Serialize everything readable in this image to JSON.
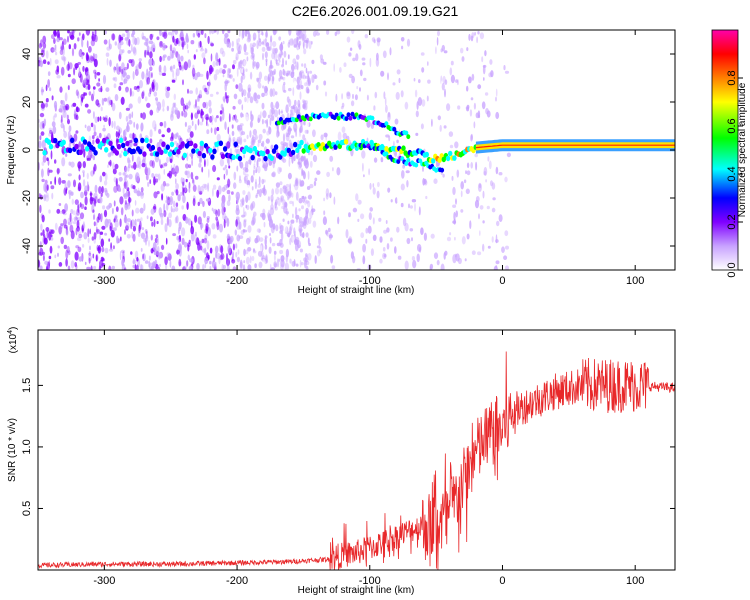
{
  "title": "C2E6.2026.001.09.19.G21",
  "chart_data": [
    {
      "type": "heatmap",
      "title": "C2E6.2026.001.09.19.G21",
      "xlabel": "Height of straight line (km)",
      "ylabel": "Frequency (Hz)",
      "xlim": [
        -350,
        130
      ],
      "ylim": [
        -50,
        50
      ],
      "x_ticks": [
        -300,
        -200,
        -100,
        0,
        100
      ],
      "y_ticks": [
        -40,
        -20,
        0,
        20,
        40
      ],
      "colorbar": {
        "label": "Normalized spectral amplitude",
        "range": [
          0.0,
          1.0
        ],
        "ticks": [
          0.0,
          0.2,
          0.4,
          0.6,
          0.8
        ],
        "tick_labels": [
          "0.0",
          "0.2",
          "0.4",
          "0.6",
          "0.8"
        ],
        "colors": [
          "#ffffff",
          "#c8a2ff",
          "#8000ff",
          "#0000ff",
          "#00ffff",
          "#00ff00",
          "#ffff00",
          "#ff8000",
          "#ff0000",
          "#ff00aa"
        ]
      },
      "main_track": [
        {
          "x": -340,
          "y": 1.5
        },
        {
          "x": -300,
          "y": 1.5
        },
        {
          "x": -260,
          "y": 1
        },
        {
          "x": -220,
          "y": 0
        },
        {
          "x": -180,
          "y": -1
        },
        {
          "x": -150,
          "y": 1
        },
        {
          "x": -120,
          "y": 2
        },
        {
          "x": -100,
          "y": 2
        },
        {
          "x": -85,
          "y": 1
        },
        {
          "x": -70,
          "y": -1
        },
        {
          "x": -60,
          "y": -2
        },
        {
          "x": -50,
          "y": -4
        },
        {
          "x": -40,
          "y": -3
        },
        {
          "x": -30,
          "y": -1
        },
        {
          "x": -20,
          "y": 1
        },
        {
          "x": -10,
          "y": 1.5
        },
        {
          "x": 0,
          "y": 2
        },
        {
          "x": 50,
          "y": 2
        },
        {
          "x": 90,
          "y": 2
        },
        {
          "x": 130,
          "y": 2
        }
      ],
      "upper_track": [
        {
          "x": -170,
          "y": 12
        },
        {
          "x": -140,
          "y": 14
        },
        {
          "x": -110,
          "y": 14
        },
        {
          "x": -95,
          "y": 12
        },
        {
          "x": -80,
          "y": 8
        },
        {
          "x": -70,
          "y": 6
        }
      ],
      "lower_track": [
        {
          "x": -110,
          "y": 3
        },
        {
          "x": -95,
          "y": 1
        },
        {
          "x": -85,
          "y": -3
        },
        {
          "x": -70,
          "y": -5
        },
        {
          "x": -55,
          "y": -6
        },
        {
          "x": -45,
          "y": -9
        }
      ]
    },
    {
      "type": "line",
      "xlabel": "Height of straight line (km)",
      "ylabel": "SNR (10 * v/v)",
      "y_scale_label": "(x10",
      "y_scale_exponent": "4",
      "xlim": [
        -350,
        130
      ],
      "ylim": [
        0,
        1.95
      ],
      "x_ticks": [
        -300,
        -200,
        -100,
        0,
        100
      ],
      "y_ticks": [
        0.5,
        1.0,
        1.5
      ],
      "y_tick_labels": [
        "0.5",
        "1.0",
        "1.5"
      ],
      "color": "#e8282a",
      "series_name": "SNR",
      "trend_points": [
        {
          "x": -350,
          "y": 0.03
        },
        {
          "x": -300,
          "y": 0.04
        },
        {
          "x": -250,
          "y": 0.04
        },
        {
          "x": -200,
          "y": 0.05
        },
        {
          "x": -160,
          "y": 0.06
        },
        {
          "x": -130,
          "y": 0.08
        },
        {
          "x": -110,
          "y": 0.12
        },
        {
          "x": -90,
          "y": 0.2
        },
        {
          "x": -70,
          "y": 0.3
        },
        {
          "x": -50,
          "y": 0.38
        },
        {
          "x": -40,
          "y": 0.45
        },
        {
          "x": -30,
          "y": 0.7
        },
        {
          "x": -20,
          "y": 0.95
        },
        {
          "x": -10,
          "y": 1.1
        },
        {
          "x": 0,
          "y": 1.15
        },
        {
          "x": 10,
          "y": 1.3
        },
        {
          "x": 20,
          "y": 1.35
        },
        {
          "x": 40,
          "y": 1.45
        },
        {
          "x": 60,
          "y": 1.5
        },
        {
          "x": 80,
          "y": 1.5
        },
        {
          "x": 100,
          "y": 1.5
        },
        {
          "x": 130,
          "y": 1.48
        }
      ]
    }
  ]
}
